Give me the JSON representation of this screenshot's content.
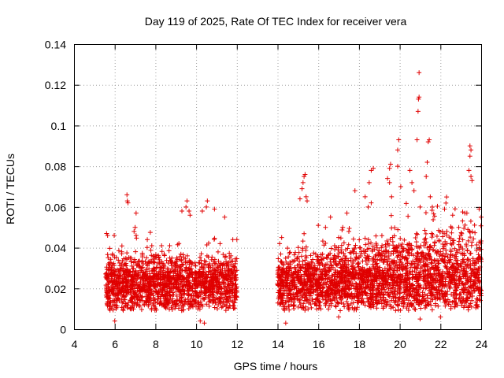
{
  "chart_data": {
    "type": "scatter",
    "title": "Day 119 of 2025, Rate Of TEC Index for receiver vera",
    "xlabel": "GPS time / hours",
    "ylabel": "ROTI / TECUs",
    "xlim": [
      4,
      24
    ],
    "ylim": [
      0,
      0.14
    ],
    "x_ticks": [
      "4",
      "6",
      "8",
      "10",
      "12",
      "14",
      "16",
      "18",
      "20",
      "22",
      "24"
    ],
    "y_ticks": [
      "0",
      "0.02",
      "0.04",
      "0.06",
      "0.08",
      "0.1",
      "0.12",
      "0.14"
    ],
    "grid": true,
    "marker": "+",
    "marker_color": "#e00000",
    "coverage": [
      {
        "start": 5.55,
        "end": 12.0
      },
      {
        "start": 14.0,
        "end": 24.0
      }
    ],
    "series": [
      {
        "name": "ROTI",
        "points": [
          [
            5.6,
            0.047
          ],
          [
            5.65,
            0.046
          ],
          [
            6.6,
            0.066
          ],
          [
            6.62,
            0.063
          ],
          [
            6.65,
            0.062
          ],
          [
            7.05,
            0.057
          ],
          [
            7.0,
            0.05
          ],
          [
            6.95,
            0.048
          ],
          [
            7.05,
            0.046
          ],
          [
            7.6,
            0.044
          ],
          [
            8.3,
            0.041
          ],
          [
            8.7,
            0.041
          ],
          [
            9.3,
            0.058
          ],
          [
            9.55,
            0.063
          ],
          [
            9.5,
            0.06
          ],
          [
            9.65,
            0.058
          ],
          [
            9.7,
            0.056
          ],
          [
            10.3,
            0.058
          ],
          [
            10.55,
            0.063
          ],
          [
            10.5,
            0.06
          ],
          [
            10.9,
            0.059
          ],
          [
            11.4,
            0.055
          ],
          [
            11.8,
            0.044
          ],
          [
            15.1,
            0.064
          ],
          [
            15.2,
            0.069
          ],
          [
            15.25,
            0.072
          ],
          [
            15.3,
            0.075
          ],
          [
            15.35,
            0.076
          ],
          [
            15.4,
            0.065
          ],
          [
            15.45,
            0.063
          ],
          [
            16.0,
            0.051
          ],
          [
            17.2,
            0.05
          ],
          [
            17.8,
            0.068
          ],
          [
            18.3,
            0.065
          ],
          [
            18.5,
            0.072
          ],
          [
            18.6,
            0.078
          ],
          [
            18.7,
            0.079
          ],
          [
            18.6,
            0.062
          ],
          [
            18.45,
            0.06
          ],
          [
            19.4,
            0.074
          ],
          [
            19.5,
            0.079
          ],
          [
            19.55,
            0.081
          ],
          [
            19.5,
            0.072
          ],
          [
            19.6,
            0.065
          ],
          [
            19.9,
            0.088
          ],
          [
            19.95,
            0.093
          ],
          [
            19.9,
            0.08
          ],
          [
            20.05,
            0.07
          ],
          [
            20.5,
            0.078
          ],
          [
            20.6,
            0.072
          ],
          [
            20.7,
            0.068
          ],
          [
            20.85,
            0.093
          ],
          [
            20.9,
            0.107
          ],
          [
            20.92,
            0.113
          ],
          [
            20.95,
            0.114
          ],
          [
            20.95,
            0.126
          ],
          [
            21.3,
            0.075
          ],
          [
            21.4,
            0.092
          ],
          [
            21.45,
            0.093
          ],
          [
            21.35,
            0.082
          ],
          [
            21.5,
            0.065
          ],
          [
            21.6,
            0.06
          ],
          [
            22.2,
            0.059
          ],
          [
            22.6,
            0.056
          ],
          [
            23.45,
            0.09
          ],
          [
            23.5,
            0.088
          ],
          [
            23.45,
            0.085
          ],
          [
            23.4,
            0.078
          ],
          [
            23.5,
            0.075
          ],
          [
            23.55,
            0.073
          ],
          [
            23.9,
            0.059
          ],
          [
            24.0,
            0.055
          ],
          [
            12.0,
            0.044
          ],
          [
            14.1,
            0.042
          ],
          [
            14.2,
            0.045
          ],
          [
            16.6,
            0.055
          ],
          [
            17.0,
            0.045
          ],
          [
            17.5,
            0.048
          ],
          [
            21.0,
            0.06
          ],
          [
            22.9,
            0.05
          ],
          [
            23.0,
            0.046
          ],
          [
            23.2,
            0.057
          ],
          [
            6.0,
            0.004
          ],
          [
            10.2,
            0.004
          ],
          [
            10.4,
            0.003
          ],
          [
            14.4,
            0.003
          ],
          [
            17.0,
            0.006
          ],
          [
            21.0,
            0.005
          ],
          [
            22.0,
            0.006
          ]
        ]
      }
    ]
  }
}
